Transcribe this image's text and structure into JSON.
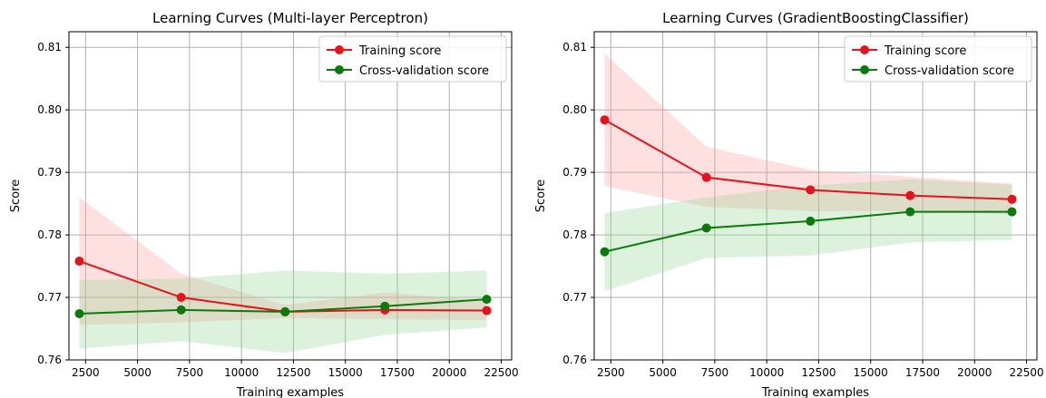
{
  "chart_data": [
    {
      "type": "line",
      "title": "Learning Curves (Multi-layer Perceptron)",
      "xlabel": "Training examples",
      "ylabel": "Score",
      "xlim": [
        1700,
        23000
      ],
      "ylim": [
        0.76,
        0.8125
      ],
      "xticks": [
        2500,
        5000,
        7500,
        10000,
        12500,
        15000,
        17500,
        20000,
        22500
      ],
      "yticks": [
        0.76,
        0.77,
        0.78,
        0.79,
        0.8,
        0.81
      ],
      "grid": true,
      "legend_position": "top-right",
      "series": [
        {
          "name": "Training score",
          "color": "#e8121a",
          "band_color": "#ff9999",
          "x": [
            2200,
            7100,
            12100,
            16900,
            21800
          ],
          "y": [
            0.7758,
            0.77,
            0.7677,
            0.768,
            0.7679
          ],
          "lower": [
            0.7656,
            0.766,
            0.7667,
            0.7665,
            0.7664
          ],
          "upper": [
            0.786,
            0.7738,
            0.7688,
            0.7708,
            0.7694
          ]
        },
        {
          "name": "Cross-validation score",
          "color": "#0a7a0a",
          "band_color": "#8fd48f",
          "x": [
            2200,
            7100,
            12100,
            16900,
            21800
          ],
          "y": [
            0.7674,
            0.768,
            0.7677,
            0.7686,
            0.7697
          ],
          "lower": [
            0.7618,
            0.763,
            0.7611,
            0.764,
            0.7652
          ],
          "upper": [
            0.7728,
            0.773,
            0.7743,
            0.7738,
            0.7743
          ]
        }
      ]
    },
    {
      "type": "line",
      "title": "Learning Curves (GradientBoostingClassifier)",
      "xlabel": "Training examples",
      "ylabel": "Score",
      "xlim": [
        1700,
        23000
      ],
      "ylim": [
        0.76,
        0.8125
      ],
      "xticks": [
        2500,
        5000,
        7500,
        10000,
        12500,
        15000,
        17500,
        20000,
        22500
      ],
      "yticks": [
        0.76,
        0.77,
        0.78,
        0.79,
        0.8,
        0.81
      ],
      "grid": true,
      "legend_position": "top-right",
      "series": [
        {
          "name": "Training score",
          "color": "#e8121a",
          "band_color": "#ff9999",
          "x": [
            2200,
            7100,
            12100,
            16900,
            21800
          ],
          "y": [
            0.7984,
            0.7892,
            0.7872,
            0.7863,
            0.7857
          ],
          "lower": [
            0.7878,
            0.7845,
            0.7838,
            0.7838,
            0.7833
          ],
          "upper": [
            0.809,
            0.7941,
            0.7904,
            0.7893,
            0.7882
          ]
        },
        {
          "name": "Cross-validation score",
          "color": "#0a7a0a",
          "band_color": "#8fd48f",
          "x": [
            2200,
            7100,
            12100,
            16900,
            21800
          ],
          "y": [
            0.7773,
            0.7811,
            0.7822,
            0.7837,
            0.7837
          ],
          "lower": [
            0.771,
            0.7763,
            0.7767,
            0.7788,
            0.7792
          ],
          "upper": [
            0.7835,
            0.786,
            0.7879,
            0.7889,
            0.788
          ]
        }
      ]
    }
  ]
}
